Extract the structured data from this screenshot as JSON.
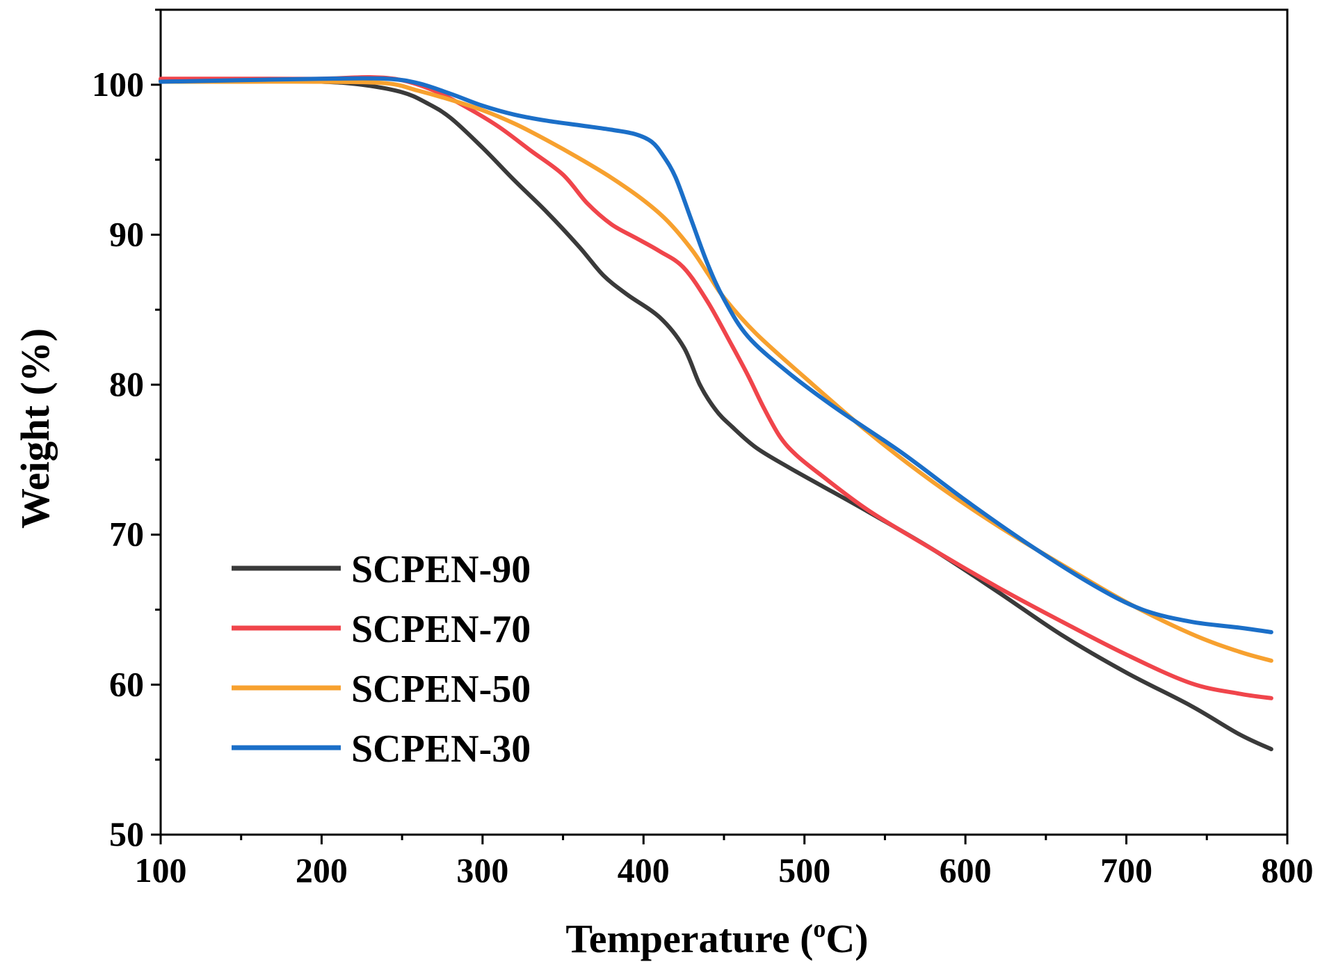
{
  "chart_data": {
    "type": "line",
    "title": "",
    "xlabel": "Temperature (",
    "xlabel_super": "o",
    "xlabel_tail": "C)",
    "ylabel": "Weight (%)",
    "xlim": [
      100,
      800
    ],
    "ylim": [
      50,
      105
    ],
    "xticks": [
      100,
      200,
      300,
      400,
      500,
      600,
      700,
      800
    ],
    "yticks": [
      50,
      60,
      70,
      80,
      90,
      100
    ],
    "legend_position": "bottom-left",
    "series": [
      {
        "name": "SCPEN-90",
        "color": "#3a3a3a",
        "x": [
          100,
          150,
          200,
          225,
          250,
          265,
          280,
          300,
          320,
          340,
          360,
          375,
          390,
          410,
          425,
          435,
          445,
          455,
          470,
          490,
          510,
          540,
          580,
          620,
          660,
          700,
          740,
          770,
          790
        ],
        "y": [
          100.3,
          100.3,
          100.2,
          100.0,
          99.5,
          98.8,
          97.8,
          95.8,
          93.6,
          91.5,
          89.2,
          87.3,
          86.0,
          84.5,
          82.5,
          80.0,
          78.3,
          77.2,
          75.8,
          74.5,
          73.3,
          71.5,
          69.0,
          66.2,
          63.3,
          60.8,
          58.6,
          56.7,
          55.7
        ]
      },
      {
        "name": "SCPEN-70",
        "color": "#f0454b",
        "x": [
          100,
          150,
          200,
          230,
          250,
          270,
          290,
          310,
          330,
          350,
          365,
          380,
          395,
          410,
          425,
          440,
          455,
          465,
          475,
          485,
          495,
          510,
          540,
          580,
          620,
          660,
          700,
          740,
          770,
          790
        ],
        "y": [
          100.4,
          100.4,
          100.4,
          100.5,
          100.3,
          99.6,
          98.5,
          97.2,
          95.6,
          94.0,
          92.1,
          90.7,
          89.8,
          88.9,
          87.8,
          85.5,
          82.6,
          80.6,
          78.4,
          76.5,
          75.3,
          74.0,
          71.6,
          69.0,
          66.5,
          64.2,
          62.0,
          60.1,
          59.4,
          59.1
        ]
      },
      {
        "name": "SCPEN-50",
        "color": "#f7a12f",
        "x": [
          100,
          150,
          200,
          240,
          260,
          280,
          300,
          320,
          340,
          360,
          380,
          400,
          415,
          430,
          440,
          450,
          470,
          500,
          540,
          580,
          620,
          660,
          700,
          740,
          770,
          790
        ],
        "y": [
          100.2,
          100.2,
          100.2,
          100.1,
          99.6,
          99.0,
          98.3,
          97.4,
          96.3,
          95.1,
          93.8,
          92.3,
          90.9,
          89.0,
          87.4,
          85.8,
          83.4,
          80.5,
          76.8,
          73.5,
          70.6,
          68.0,
          65.5,
          63.4,
          62.2,
          61.6
        ]
      },
      {
        "name": "SCPEN-30",
        "color": "#1b6fc8",
        "x": [
          100,
          150,
          200,
          240,
          260,
          280,
          300,
          320,
          340,
          360,
          380,
          395,
          405,
          412,
          420,
          430,
          440,
          450,
          465,
          490,
          520,
          560,
          600,
          640,
          680,
          710,
          740,
          770,
          790
        ],
        "y": [
          100.2,
          100.3,
          100.4,
          100.4,
          100.1,
          99.4,
          98.6,
          98.0,
          97.6,
          97.3,
          97.0,
          96.7,
          96.2,
          95.3,
          93.8,
          90.9,
          88.0,
          85.7,
          83.2,
          80.8,
          78.4,
          75.5,
          72.3,
          69.3,
          66.6,
          65.0,
          64.2,
          63.8,
          63.5
        ]
      }
    ]
  }
}
